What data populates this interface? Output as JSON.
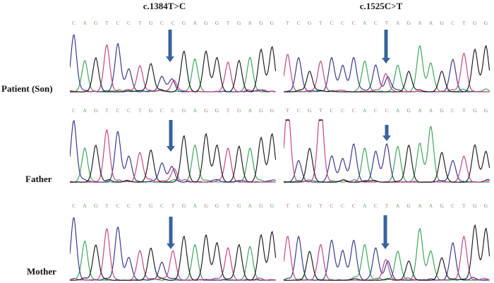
{
  "figure": {
    "column_titles": [
      "c.1384T>C",
      "c.1525C>T"
    ],
    "row_labels": [
      "Patient (Son)",
      "Father",
      "Mother"
    ],
    "base_colors": {
      "A": "#35a451",
      "C": "#32328c",
      "G": "#181818",
      "T": "#c43e7f"
    },
    "letter_colors": {
      "A": "#61a369",
      "C": "#8787ac",
      "G": "#7a7a7a",
      "T": "#c4798c"
    },
    "arrow_color": "#38639b",
    "panels": [
      {
        "id": "patient-c1384",
        "row": "Patient (Son)",
        "column": "c.1384T>C",
        "sequence": "CAGTCCTGCCGAGGTGAGG",
        "peak_heights": [
          0.97,
          0.53,
          0.58,
          0.8,
          0.81,
          0.39,
          0.44,
          0.48,
          0.26,
          0.22,
          0.69,
          0.56,
          0.69,
          0.58,
          0.5,
          0.53,
          0.58,
          0.72,
          0.76
        ],
        "arrow_index": 9,
        "heterozygous": {
          "index": 9,
          "bases": "C/T"
        }
      },
      {
        "id": "patient-c1525",
        "row": "Patient (Son)",
        "column": "c.1525C>T",
        "sequence": "TCGTCCCACTAGAAGCTGG",
        "peak_heights": [
          0.63,
          0.58,
          0.35,
          0.52,
          0.58,
          0.44,
          0.58,
          0.52,
          0.45,
          0.3,
          0.45,
          0.35,
          0.78,
          0.48,
          0.35,
          0.55,
          0.65,
          0.72,
          0.78
        ],
        "arrow_index": 9,
        "heterozygous": {
          "index": 9,
          "bases": "T/C"
        }
      },
      {
        "id": "father-c1384",
        "row": "Father",
        "column": "c.1384T>C",
        "sequence": "CAGTCCTGCCGAGGTGAGG",
        "peak_heights": [
          1.0,
          0.55,
          0.6,
          0.85,
          0.82,
          0.42,
          0.48,
          0.52,
          0.3,
          0.25,
          0.75,
          0.6,
          0.78,
          0.6,
          0.55,
          0.58,
          0.55,
          0.72,
          0.78
        ],
        "arrow_index": 9,
        "heterozygous": {
          "index": 9,
          "bases": "C/T"
        }
      },
      {
        "id": "father-c1525",
        "row": "Father",
        "column": "c.1525C>T",
        "sequence": "TCGTCCCACCAGAAGCTGG",
        "peak_heights": [
          1.3,
          0.35,
          0.55,
          1.3,
          0.42,
          0.38,
          0.62,
          0.55,
          0.5,
          0.62,
          0.58,
          0.6,
          0.62,
          0.9,
          0.48,
          0.35,
          0.42,
          0.6,
          0.5
        ],
        "arrow_index": 9,
        "heterozygous": null
      },
      {
        "id": "mother-c1384",
        "row": "Mother",
        "column": "c.1384T>C",
        "sequence": "CAGTCCTGCTGAGGTGAGG",
        "peak_heights": [
          0.97,
          0.6,
          0.55,
          0.8,
          0.82,
          0.35,
          0.45,
          0.5,
          0.28,
          0.45,
          0.68,
          0.55,
          0.7,
          0.58,
          0.5,
          0.55,
          0.52,
          0.7,
          0.75
        ],
        "arrow_index": 9,
        "heterozygous": null
      },
      {
        "id": "mother-c1525",
        "row": "Mother",
        "column": "c.1525C>T",
        "sequence": "TCGTCCCACTAGAAGCTGG",
        "peak_heights": [
          0.68,
          0.68,
          0.45,
          0.55,
          0.62,
          0.45,
          0.62,
          0.55,
          0.5,
          0.32,
          0.45,
          0.3,
          0.8,
          0.45,
          0.35,
          0.58,
          0.68,
          0.85,
          0.8
        ],
        "arrow_index": 9,
        "heterozygous": {
          "index": 9,
          "bases": "T/C"
        }
      }
    ]
  }
}
